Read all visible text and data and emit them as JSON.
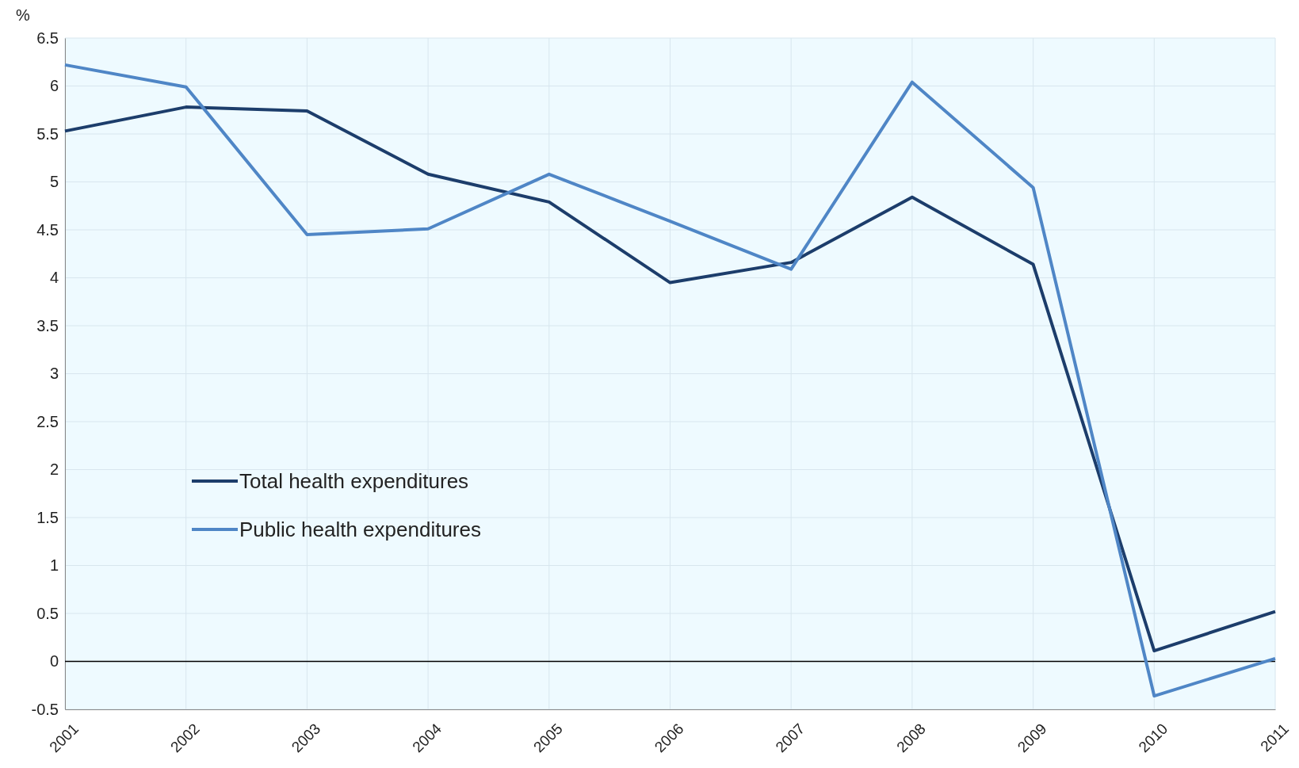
{
  "chart_data": {
    "type": "line",
    "ylabel": "%",
    "x": [
      2001,
      2002,
      2003,
      2004,
      2005,
      2006,
      2007,
      2008,
      2009,
      2010,
      2011
    ],
    "xlim": [
      2001,
      2011
    ],
    "xticks": [
      2001,
      2002,
      2003,
      2004,
      2005,
      2006,
      2007,
      2008,
      2009,
      2010,
      2011
    ],
    "ylim": [
      -0.5,
      6.5
    ],
    "yticks": [
      -0.5,
      0,
      0.5,
      1,
      1.5,
      2,
      2.5,
      3,
      3.5,
      4,
      4.5,
      5,
      5.5,
      6,
      6.5
    ],
    "grid": true,
    "legend": "left",
    "marker": "none",
    "line_style": "solid",
    "ref_lines": [
      {
        "axis": "y",
        "value": 0,
        "color": "#000000"
      }
    ],
    "series": [
      {
        "name": "Total health expenditures",
        "color": "#1c3d6b",
        "values": [
          5.53,
          5.78,
          5.74,
          5.08,
          4.79,
          3.95,
          4.16,
          4.84,
          4.14,
          0.11,
          0.52
        ]
      },
      {
        "name": "Public health expenditures",
        "color": "#4f86c6",
        "values": [
          6.22,
          5.99,
          4.45,
          4.51,
          5.08,
          4.59,
          4.09,
          6.04,
          4.94,
          -0.36,
          0.03
        ]
      }
    ]
  }
}
